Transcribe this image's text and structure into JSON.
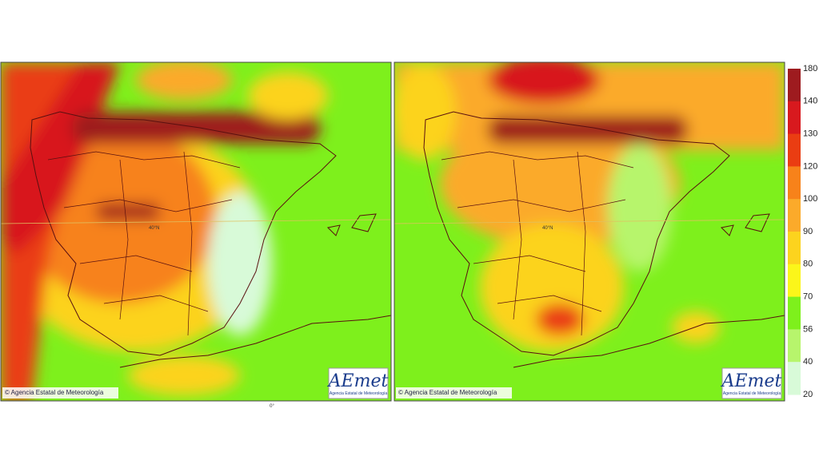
{
  "maps": [
    {
      "copyright": "© Agencia Estatal de Meteorología",
      "logo": "AEmet",
      "logo_subtitle": "Agencia Estatal de Meteorología",
      "lat_label": "40°N"
    },
    {
      "copyright": "© Agencia Estatal de Meteorología",
      "logo": "AEmet",
      "logo_subtitle": "Agencia Estatal de Meteorología",
      "lat_label": "40°N"
    }
  ],
  "lon_label": "0°",
  "legend": {
    "labels": [
      "180",
      "140",
      "130",
      "120",
      "100",
      "90",
      "80",
      "70",
      "56",
      "40",
      "20"
    ],
    "colors": [
      "#9e1b1f",
      "#d8191e",
      "#ea3d12",
      "#f7821a",
      "#fbaa2a",
      "#fcd31e",
      "#fbf61a",
      "#7ef01c",
      "#b7f56c",
      "#d8fad8"
    ]
  }
}
